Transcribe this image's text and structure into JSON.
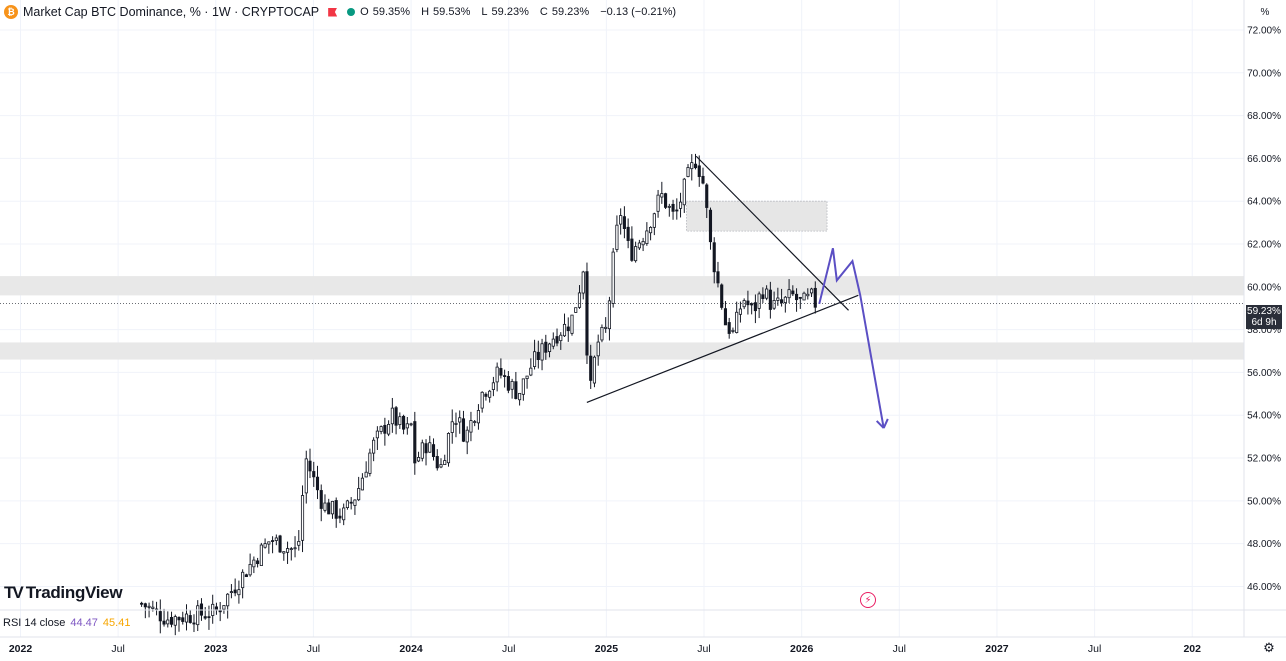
{
  "header": {
    "coin_symbol": "₿",
    "title": "Market Cap BTC Dominance, % · 1W · CRYPTOCAP",
    "open_label": "O",
    "open": "59.35%",
    "high_label": "H",
    "high": "59.53%",
    "low_label": "L",
    "low": "59.23%",
    "close_label": "C",
    "close": "59.23%",
    "change": "−0.13 (−0.21%)",
    "scale_unit": "%"
  },
  "price_tag": {
    "value": "59.23%",
    "countdown": "6d 9h"
  },
  "logo": {
    "text": "TradingView"
  },
  "rsi": {
    "label": "RSI 14 close",
    "rsi_value": "44.47",
    "ma_value": "45.41"
  },
  "colors": {
    "candle": "#131722",
    "zone": "#e8e8e8",
    "projection": "#5b4fc4",
    "rsi_line": "#7e57c2",
    "rsi_ma": "#f7a600",
    "price_tag_bg": "#2a2e39"
  },
  "chart_data": {
    "type": "candlestick",
    "title": "Market Cap BTC Dominance, % · 1W · CRYPTOCAP",
    "ylabel": "%",
    "ylim": [
      44.9,
      73.4
    ],
    "y_ticks": [
      "72.00%",
      "70.00%",
      "68.00%",
      "66.00%",
      "64.00%",
      "62.00%",
      "60.00%",
      "58.00%",
      "56.00%",
      "54.00%",
      "52.00%",
      "50.00%",
      "48.00%",
      "46.00%"
    ],
    "y_tick_values": [
      72,
      70,
      68,
      66,
      64,
      62,
      60,
      58,
      56,
      54,
      52,
      50,
      48,
      46
    ],
    "x_range": [
      2021.895,
      2028.265
    ],
    "x_ticks": [
      "2022",
      "Jul",
      "2023",
      "Jul",
      "2024",
      "Jul",
      "2025",
      "Jul",
      "2026",
      "Jul",
      "2027",
      "Jul",
      "202"
    ],
    "x_tick_values": [
      2022.0,
      2022.5,
      2023.0,
      2023.5,
      2024.0,
      2024.5,
      2025.0,
      2025.5,
      2026.0,
      2026.5,
      2027.0,
      2027.5,
      2028.0
    ],
    "closes_anchor": [
      [
        2022.62,
        45.2
      ],
      [
        2022.75,
        44.5
      ],
      [
        2023.0,
        44.8
      ],
      [
        2023.2,
        47.3
      ],
      [
        2023.28,
        48.2
      ],
      [
        2023.42,
        47.6
      ],
      [
        2023.46,
        52.0
      ],
      [
        2023.55,
        49.8
      ],
      [
        2023.65,
        49.3
      ],
      [
        2023.72,
        50.3
      ],
      [
        2023.8,
        52.5
      ],
      [
        2023.9,
        54.0
      ],
      [
        2023.97,
        53.2
      ],
      [
        2024.0,
        53.5
      ],
      [
        2024.02,
        51.8
      ],
      [
        2024.08,
        52.7
      ],
      [
        2024.15,
        51.5
      ],
      [
        2024.22,
        54.1
      ],
      [
        2024.28,
        53.0
      ],
      [
        2024.36,
        55.0
      ],
      [
        2024.45,
        56.0
      ],
      [
        2024.55,
        55.0
      ],
      [
        2024.62,
        56.4
      ],
      [
        2024.72,
        57.6
      ],
      [
        2024.82,
        58.4
      ],
      [
        2024.86,
        59.8
      ],
      [
        2024.88,
        61.2
      ],
      [
        2024.9,
        57.3
      ],
      [
        2024.92,
        55.2
      ],
      [
        2024.95,
        57.3
      ],
      [
        2025.0,
        58.0
      ],
      [
        2025.04,
        61.7
      ],
      [
        2025.07,
        63.6
      ],
      [
        2025.12,
        61.5
      ],
      [
        2025.2,
        62.6
      ],
      [
        2025.28,
        64.3
      ],
      [
        2025.35,
        63.2
      ],
      [
        2025.42,
        65.2
      ],
      [
        2025.46,
        66.0
      ],
      [
        2025.5,
        64.7
      ],
      [
        2025.53,
        62.1
      ],
      [
        2025.57,
        60.2
      ],
      [
        2025.61,
        58.3
      ],
      [
        2025.65,
        57.8
      ],
      [
        2025.7,
        59.5
      ],
      [
        2025.75,
        58.8
      ],
      [
        2025.8,
        59.9
      ],
      [
        2025.85,
        59.1
      ],
      [
        2025.9,
        59.2
      ],
      [
        2025.95,
        59.6
      ],
      [
        2026.0,
        59.2
      ],
      [
        2026.05,
        59.5
      ],
      [
        2026.07,
        59.23
      ]
    ],
    "annotations": {
      "resistance_zone": [
        59.6,
        60.5
      ],
      "support_zone": [
        56.6,
        57.4
      ],
      "supply_box": {
        "x": [
          2025.41,
          2026.13
        ],
        "y": [
          62.6,
          64.0
        ]
      },
      "triangle_upper": [
        [
          2025.46,
          66.1
        ],
        [
          2026.24,
          58.9
        ]
      ],
      "triangle_lower": [
        [
          2024.9,
          54.6
        ],
        [
          2026.29,
          59.6
        ]
      ],
      "projection": [
        [
          2026.09,
          59.2
        ],
        [
          2026.16,
          61.8
        ],
        [
          2026.18,
          60.3
        ],
        [
          2026.26,
          61.2
        ],
        [
          2026.3,
          59.6
        ],
        [
          2026.42,
          53.4
        ]
      ],
      "current_price": 59.23
    }
  }
}
